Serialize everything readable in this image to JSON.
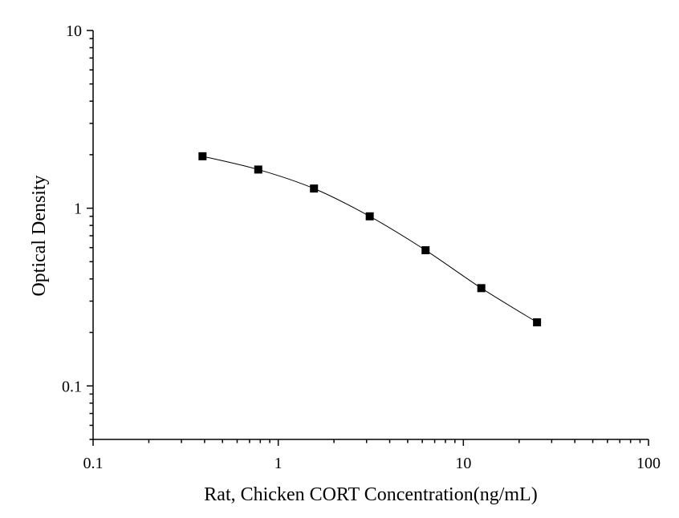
{
  "chart_data": {
    "type": "scatter",
    "title": "",
    "xlabel": "Rat, Chicken CORT Concentration(ng/mL)",
    "ylabel": "Optical Density",
    "x_scale": "log",
    "y_scale": "log",
    "xlim": [
      0.1,
      100
    ],
    "ylim": [
      0.05,
      10
    ],
    "x_ticks": [
      0.1,
      1,
      10,
      100
    ],
    "x_tick_labels": [
      "0.1",
      "1",
      "10",
      "100"
    ],
    "y_ticks": [
      0.1,
      1,
      10
    ],
    "y_tick_labels": [
      "0.1",
      "1",
      "10"
    ],
    "grid": false,
    "legend": "none",
    "marker": "square",
    "line": "smooth",
    "color": "#000000",
    "series": [
      {
        "x": [
          0.39,
          0.78,
          1.56,
          3.12,
          6.25,
          12.5,
          25
        ],
        "y": [
          1.96,
          1.65,
          1.29,
          0.9,
          0.58,
          0.355,
          0.228
        ]
      }
    ]
  }
}
